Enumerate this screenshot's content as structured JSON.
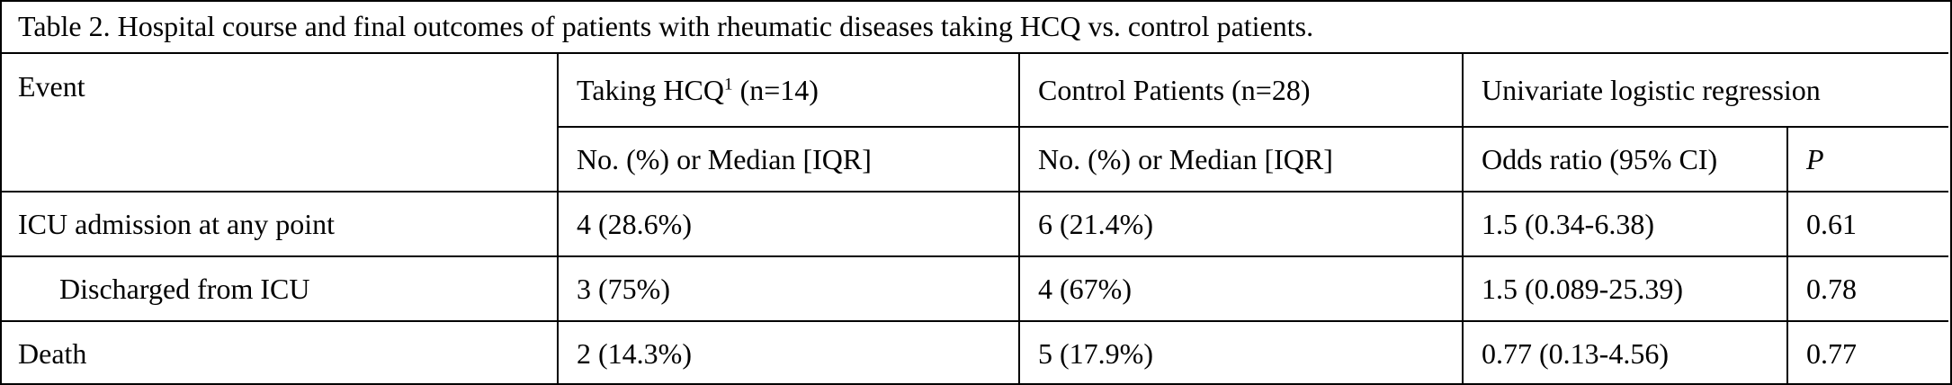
{
  "caption": "Table 2. Hospital course and final outcomes of patients with rheumatic diseases taking HCQ vs. control patients.",
  "headers": {
    "event": "Event",
    "hcq_label": "Taking HCQ",
    "hcq_sup": "1",
    "hcq_n": " (n=14)",
    "control": "Control Patients (n=28)",
    "regression": "Univariate logistic regression",
    "hcq_sub": "No. (%) or Median [IQR]",
    "control_sub": "No. (%) or Median [IQR]",
    "or_sub": "Odds ratio (95% CI)",
    "p_sub": "P"
  },
  "rows": [
    {
      "event": "ICU admission at any point",
      "hcq": "4 (28.6%)",
      "control": "6 (21.4%)",
      "or": "1.5 (0.34-6.38)",
      "p": "0.61"
    },
    {
      "event": "Discharged from ICU",
      "hcq": "3 (75%)",
      "control": "4 (67%)",
      "or": "1.5 (0.089-25.39)",
      "p": "0.78"
    },
    {
      "event": "Death",
      "hcq": "2 (14.3%)",
      "control": "5 (17.9%)",
      "or": "0.77 (0.13-4.56)",
      "p": "0.77"
    }
  ]
}
